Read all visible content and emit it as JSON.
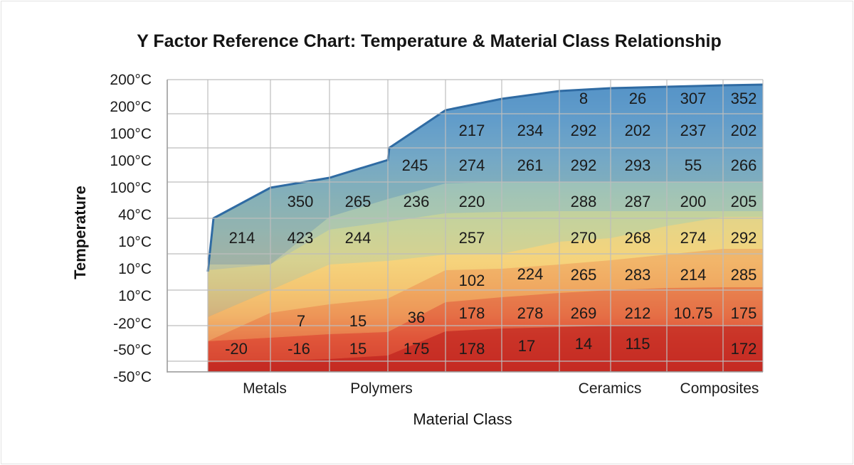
{
  "chart_data": {
    "type": "heatmap",
    "title": "Y Factor Reference Chart: Temperature & Material Class Relationship",
    "xlabel": "Material Class",
    "ylabel": "Temperature",
    "y_tick_labels": [
      "200°C",
      "200°C",
      "100°C",
      "100°C",
      "100°C",
      "40°C",
      "10°C",
      "10°C",
      "10°C",
      "-20°C",
      "-50°C",
      "-50°C"
    ],
    "x_tick_labels": [
      "Metals",
      "Polymers",
      "Ceramics",
      "Composites"
    ],
    "grid": true,
    "colors": {
      "blue": "#5b97c9",
      "blue_edge": "#2f6ba3",
      "teal": "#8fbbc2",
      "green": "#bdd0a1",
      "yellow": "#f5d37c",
      "orange": "#ee9d5b",
      "red_orange": "#e0563a",
      "red": "#c42a23"
    },
    "cells": [
      {
        "column": 1,
        "row": 7,
        "value": "214"
      },
      {
        "column": 2,
        "row": 6,
        "value": "350"
      },
      {
        "column": 2,
        "row": 7,
        "value": "423"
      },
      {
        "column": 2,
        "row": 9,
        "value": "7"
      },
      {
        "column": 2,
        "row": 10,
        "value": "-20"
      },
      {
        "column": 2,
        "row": 10,
        "value": "-16"
      },
      {
        "column": 3,
        "row": 6,
        "value": "265"
      },
      {
        "column": 3,
        "row": 7,
        "value": "244"
      },
      {
        "column": 3,
        "row": 9,
        "value": "15"
      },
      {
        "column": 3,
        "row": 10,
        "value": "15"
      },
      {
        "column": 4,
        "row": 5,
        "value": "245"
      },
      {
        "column": 4,
        "row": 6,
        "value": "236"
      },
      {
        "column": 4,
        "row": 9,
        "value": "36"
      },
      {
        "column": 4,
        "row": 10,
        "value": "175"
      },
      {
        "column": 5,
        "row": 3,
        "value": "217"
      },
      {
        "column": 5,
        "row": 5,
        "value": "274"
      },
      {
        "column": 5,
        "row": 6,
        "value": "220"
      },
      {
        "column": 5,
        "row": 7,
        "value": "257"
      },
      {
        "column": 5,
        "row": 8,
        "value": "102"
      },
      {
        "column": 5,
        "row": 9,
        "value": "178"
      },
      {
        "column": 5,
        "row": 10,
        "value": "178"
      },
      {
        "column": 6,
        "row": 3,
        "value": "234"
      },
      {
        "column": 6,
        "row": 5,
        "value": "261"
      },
      {
        "column": 6,
        "row": 8,
        "value": "224"
      },
      {
        "column": 6,
        "row": 9,
        "value": "278"
      },
      {
        "column": 6,
        "row": 10,
        "value": "17"
      },
      {
        "column": 7,
        "row": 2,
        "value": "8"
      },
      {
        "column": 7,
        "row": 3,
        "value": "292"
      },
      {
        "column": 7,
        "row": 5,
        "value": "292"
      },
      {
        "column": 7,
        "row": 6,
        "value": "288"
      },
      {
        "column": 7,
        "row": 7,
        "value": "270"
      },
      {
        "column": 7,
        "row": 8,
        "value": "265"
      },
      {
        "column": 7,
        "row": 9,
        "value": "269"
      },
      {
        "column": 7,
        "row": 10,
        "value": "14"
      },
      {
        "column": 8,
        "row": 2,
        "value": "26"
      },
      {
        "column": 8,
        "row": 3,
        "value": "202"
      },
      {
        "column": 8,
        "row": 5,
        "value": "293"
      },
      {
        "column": 8,
        "row": 6,
        "value": "287"
      },
      {
        "column": 8,
        "row": 7,
        "value": "268"
      },
      {
        "column": 8,
        "row": 8,
        "value": "283"
      },
      {
        "column": 8,
        "row": 9,
        "value": "212"
      },
      {
        "column": 8,
        "row": 10,
        "value": "115"
      },
      {
        "column": 9,
        "row": 2,
        "value": "307"
      },
      {
        "column": 9,
        "row": 3,
        "value": "237"
      },
      {
        "column": 9,
        "row": 5,
        "value": "55"
      },
      {
        "column": 9,
        "row": 6,
        "value": "200"
      },
      {
        "column": 9,
        "row": 7,
        "value": "274"
      },
      {
        "column": 9,
        "row": 8,
        "value": "214"
      },
      {
        "column": 9,
        "row": 9,
        "value": "10.75"
      },
      {
        "column": 10,
        "row": 2,
        "value": "352"
      },
      {
        "column": 10,
        "row": 3,
        "value": "202"
      },
      {
        "column": 10,
        "row": 5,
        "value": "266"
      },
      {
        "column": 10,
        "row": 6,
        "value": "205"
      },
      {
        "column": 10,
        "row": 7,
        "value": "292"
      },
      {
        "column": 10,
        "row": 8,
        "value": "285"
      },
      {
        "column": 10,
        "row": 9,
        "value": "175"
      },
      {
        "column": 10,
        "row": 10,
        "value": "172"
      }
    ]
  }
}
